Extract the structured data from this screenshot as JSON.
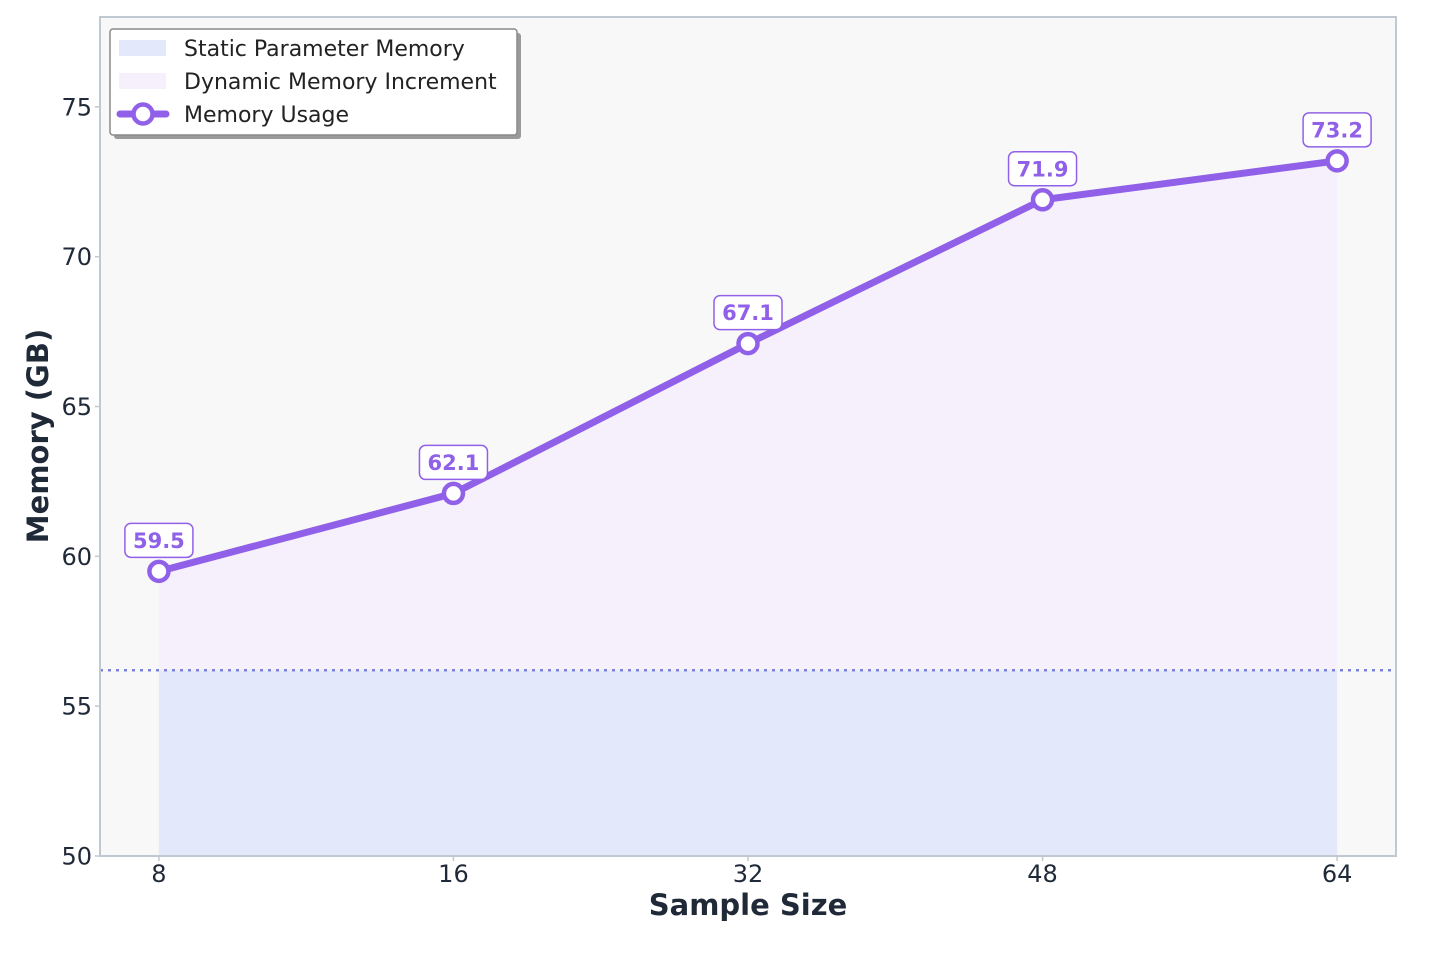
{
  "chart_data": {
    "type": "line",
    "title": "",
    "xlabel": "Sample Size",
    "ylabel": "Memory (GB)",
    "categories": [
      "8",
      "16",
      "32",
      "48",
      "64"
    ],
    "x_positions": [
      0,
      1,
      2,
      3,
      4
    ],
    "ylim": [
      50,
      78
    ],
    "yticks": [
      50,
      55,
      60,
      65,
      70,
      75
    ],
    "grid": false,
    "legend_placement": "top-left",
    "static_memory": 56.2,
    "series": [
      {
        "name": "Memory Usage",
        "values": [
          59.5,
          62.1,
          67.1,
          71.9,
          73.2
        ],
        "labels": [
          "59.5",
          "62.1",
          "67.1",
          "71.9",
          "73.2"
        ],
        "color": "#9061e8"
      }
    ],
    "areas": [
      {
        "name": "Static Parameter Memory",
        "color": "#e3e8fb"
      },
      {
        "name": "Dynamic Memory Increment",
        "color": "#f5f0fc"
      }
    ],
    "legend": [
      {
        "label": "Static Parameter Memory",
        "kind": "patch",
        "color": "#e3e8fb"
      },
      {
        "label": "Dynamic Memory Increment",
        "kind": "patch",
        "color": "#f5f0fc"
      },
      {
        "label": "Memory Usage",
        "kind": "line-marker",
        "color": "#9061e8"
      }
    ],
    "colors": {
      "plot_background": "#f8f8f8",
      "frame": "#c0c8d2",
      "static_line": "#7b83d6",
      "text": "#1f2937"
    }
  }
}
